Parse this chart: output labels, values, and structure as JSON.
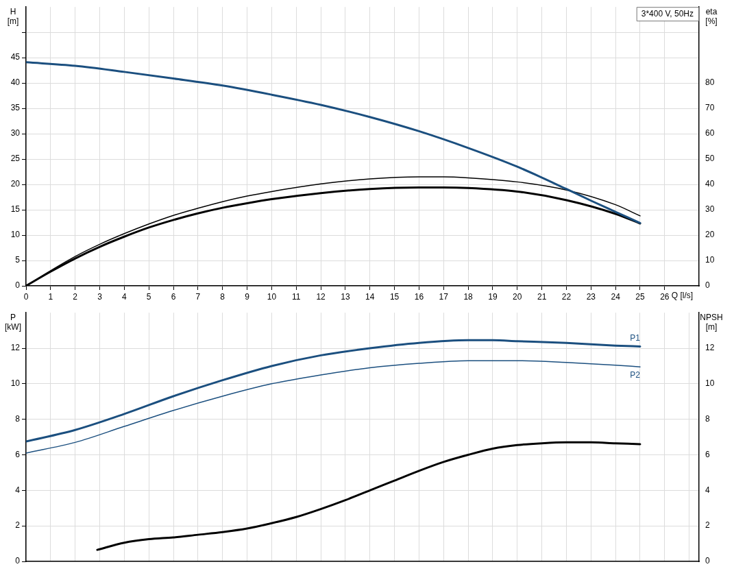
{
  "chart_data": [
    {
      "type": "line",
      "title": "3*400 V, 50Hz",
      "xlabel": "Q [l/s]",
      "ylabel": "H [m]",
      "y2label": "eta [%]",
      "xlim": [
        0,
        27.4
      ],
      "xticks": [
        0,
        1,
        2,
        3,
        4,
        5,
        6,
        7,
        8,
        9,
        10,
        11,
        12,
        13,
        14,
        15,
        16,
        17,
        18,
        19,
        20,
        21,
        22,
        23,
        24,
        25,
        26
      ],
      "ylim": [
        0,
        55
      ],
      "yticks": [
        0,
        5,
        10,
        15,
        20,
        25,
        30,
        35,
        40,
        45,
        {
          "value": 50,
          "label": null
        }
      ],
      "y2lim": [
        0,
        110
      ],
      "y2ticks": [
        0,
        10,
        20,
        30,
        40,
        50,
        60,
        70,
        80
      ],
      "grid": true,
      "legend": false,
      "series": [
        {
          "color": "#1b4f7f",
          "x": [
            0,
            2,
            4,
            6,
            8,
            10,
            12,
            14,
            16,
            18,
            20,
            22,
            23,
            24,
            25
          ],
          "values": [
            44.1,
            43.4,
            42.2,
            40.9,
            39.5,
            37.7,
            35.7,
            33.3,
            30.5,
            27.2,
            23.5,
            19.1,
            16.8,
            14.6,
            12.4
          ]
        },
        {
          "color": "#000000",
          "axis": "y2",
          "x": [
            0,
            1,
            2,
            3,
            4,
            5,
            6,
            7,
            8,
            9,
            10,
            12,
            14,
            16,
            17,
            18,
            20,
            22,
            24,
            25
          ],
          "values": [
            0,
            6,
            11.6,
            16.4,
            20.6,
            24.4,
            27.8,
            30.6,
            33.2,
            35.4,
            37.2,
            40.2,
            42.2,
            43,
            43,
            42.6,
            41,
            37.8,
            32,
            27.6
          ]
        },
        {
          "color": "#000000",
          "axis": "y2",
          "x": [
            0,
            1,
            2,
            3,
            4,
            5,
            6,
            7,
            8,
            9,
            10,
            12,
            14,
            16,
            17,
            18,
            20,
            22,
            24,
            25
          ],
          "values": [
            0,
            5.6,
            10.8,
            15.4,
            19.4,
            23,
            26,
            28.6,
            30.8,
            32.6,
            34.2,
            36.6,
            38.2,
            38.8,
            38.8,
            38.6,
            37.2,
            33.8,
            28.4,
            24.6
          ]
        }
      ]
    },
    {
      "type": "line",
      "ylabel": "P [kW]",
      "y2label": "NPSH [m]",
      "xlim": [
        0,
        27.4
      ],
      "xticks": [
        0,
        1,
        2,
        3,
        4,
        5,
        6,
        7,
        8,
        9,
        10,
        11,
        12,
        13,
        14,
        15,
        16,
        17,
        18,
        19,
        20,
        21,
        22,
        23,
        24,
        25,
        26,
        27
      ],
      "ylim": [
        0,
        14
      ],
      "yticks": [
        0,
        2,
        4,
        6,
        8,
        10,
        12
      ],
      "y2lim": [
        0,
        14
      ],
      "y2ticks": [
        0,
        2,
        4,
        6,
        8,
        10,
        12
      ],
      "tick_labels": "y",
      "grid": true,
      "legend": false,
      "series": [
        {
          "name": "P1",
          "color": "#1b4f7f",
          "x": [
            0,
            2,
            4,
            6,
            8,
            10,
            12,
            14,
            16,
            18,
            19,
            20,
            22,
            24,
            25
          ],
          "values": [
            6.75,
            7.4,
            8.3,
            9.3,
            10.2,
            11,
            11.6,
            12,
            12.3,
            12.45,
            12.45,
            12.4,
            12.3,
            12.15,
            12.1
          ]
        },
        {
          "name": "P2",
          "color": "#1b4f7f",
          "x": [
            0,
            2,
            4,
            6,
            8,
            10,
            12,
            14,
            16,
            18,
            20,
            22,
            24,
            25
          ],
          "values": [
            6.1,
            6.7,
            7.6,
            8.5,
            9.3,
            10,
            10.5,
            10.9,
            11.15,
            11.3,
            11.3,
            11.2,
            11.05,
            10.95
          ]
        },
        {
          "color": "#000000",
          "axis": "y2",
          "x": [
            2.9,
            4,
            5,
            6,
            7,
            8,
            9,
            10,
            11,
            12,
            13,
            14,
            15,
            16,
            17,
            18,
            19,
            20,
            21,
            22,
            23,
            24,
            25
          ],
          "values": [
            0.65,
            1.05,
            1.25,
            1.35,
            1.5,
            1.65,
            1.85,
            2.15,
            2.5,
            2.95,
            3.45,
            4,
            4.55,
            5.1,
            5.6,
            6,
            6.35,
            6.55,
            6.65,
            6.7,
            6.7,
            6.65,
            6.6
          ]
        }
      ]
    }
  ]
}
